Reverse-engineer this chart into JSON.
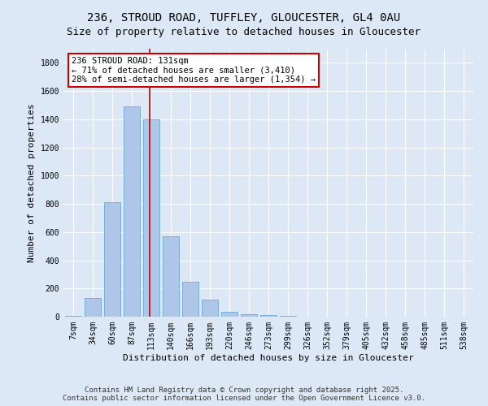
{
  "title_line1": "236, STROUD ROAD, TUFFLEY, GLOUCESTER, GL4 0AU",
  "title_line2": "Size of property relative to detached houses in Gloucester",
  "xlabel": "Distribution of detached houses by size in Gloucester",
  "ylabel": "Number of detached properties",
  "categories": [
    "7sqm",
    "34sqm",
    "60sqm",
    "87sqm",
    "113sqm",
    "140sqm",
    "166sqm",
    "193sqm",
    "220sqm",
    "246sqm",
    "273sqm",
    "299sqm",
    "326sqm",
    "352sqm",
    "379sqm",
    "405sqm",
    "432sqm",
    "458sqm",
    "485sqm",
    "511sqm",
    "538sqm"
  ],
  "values": [
    5,
    130,
    810,
    1490,
    1400,
    570,
    250,
    120,
    35,
    20,
    10,
    5,
    2,
    1,
    0,
    0,
    0,
    0,
    0,
    0,
    0
  ],
  "bar_color": "#aec6e8",
  "bar_edgecolor": "#5a9fd4",
  "vline_color": "#cc0000",
  "vline_x_index": 3.925,
  "annotation_text": "236 STROUD ROAD: 131sqm\n← 71% of detached houses are smaller (3,410)\n28% of semi-detached houses are larger (1,354) →",
  "annotation_box_facecolor": "#ffffff",
  "annotation_box_edgecolor": "#cc0000",
  "ylim": [
    0,
    1900
  ],
  "yticks": [
    0,
    200,
    400,
    600,
    800,
    1000,
    1200,
    1400,
    1600,
    1800
  ],
  "background_color": "#dce8f5",
  "plot_background": "#dce8f5",
  "grid_color": "#ffffff",
  "footer_line1": "Contains HM Land Registry data © Crown copyright and database right 2025.",
  "footer_line2": "Contains public sector information licensed under the Open Government Licence v3.0.",
  "title_fontsize": 10,
  "subtitle_fontsize": 9,
  "axis_label_fontsize": 8,
  "tick_fontsize": 7,
  "annotation_fontsize": 7.5,
  "footer_fontsize": 6.5
}
